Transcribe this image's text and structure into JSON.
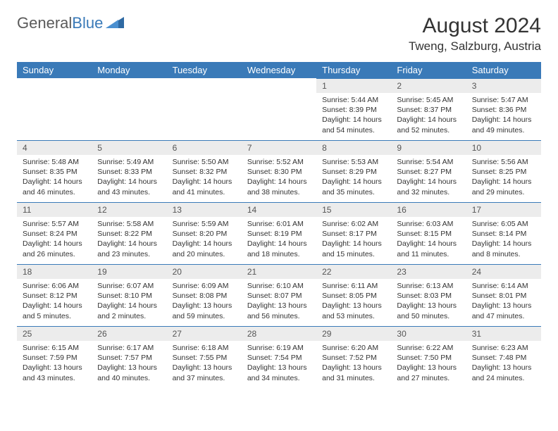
{
  "logo": {
    "word1": "General",
    "word2": "Blue"
  },
  "title": "August 2024",
  "location": "Tweng, Salzburg, Austria",
  "colors": {
    "header_bg": "#3a7ab8",
    "header_text": "#ffffff",
    "daynum_bg": "#ececec",
    "border": "#3a7ab8",
    "body_text": "#333333"
  },
  "daysOfWeek": [
    "Sunday",
    "Monday",
    "Tuesday",
    "Wednesday",
    "Thursday",
    "Friday",
    "Saturday"
  ],
  "weeks": [
    [
      {
        "n": "",
        "sr": "",
        "ss": "",
        "dl": ""
      },
      {
        "n": "",
        "sr": "",
        "ss": "",
        "dl": ""
      },
      {
        "n": "",
        "sr": "",
        "ss": "",
        "dl": ""
      },
      {
        "n": "",
        "sr": "",
        "ss": "",
        "dl": ""
      },
      {
        "n": "1",
        "sr": "Sunrise: 5:44 AM",
        "ss": "Sunset: 8:39 PM",
        "dl": "Daylight: 14 hours and 54 minutes."
      },
      {
        "n": "2",
        "sr": "Sunrise: 5:45 AM",
        "ss": "Sunset: 8:37 PM",
        "dl": "Daylight: 14 hours and 52 minutes."
      },
      {
        "n": "3",
        "sr": "Sunrise: 5:47 AM",
        "ss": "Sunset: 8:36 PM",
        "dl": "Daylight: 14 hours and 49 minutes."
      }
    ],
    [
      {
        "n": "4",
        "sr": "Sunrise: 5:48 AM",
        "ss": "Sunset: 8:35 PM",
        "dl": "Daylight: 14 hours and 46 minutes."
      },
      {
        "n": "5",
        "sr": "Sunrise: 5:49 AM",
        "ss": "Sunset: 8:33 PM",
        "dl": "Daylight: 14 hours and 43 minutes."
      },
      {
        "n": "6",
        "sr": "Sunrise: 5:50 AM",
        "ss": "Sunset: 8:32 PM",
        "dl": "Daylight: 14 hours and 41 minutes."
      },
      {
        "n": "7",
        "sr": "Sunrise: 5:52 AM",
        "ss": "Sunset: 8:30 PM",
        "dl": "Daylight: 14 hours and 38 minutes."
      },
      {
        "n": "8",
        "sr": "Sunrise: 5:53 AM",
        "ss": "Sunset: 8:29 PM",
        "dl": "Daylight: 14 hours and 35 minutes."
      },
      {
        "n": "9",
        "sr": "Sunrise: 5:54 AM",
        "ss": "Sunset: 8:27 PM",
        "dl": "Daylight: 14 hours and 32 minutes."
      },
      {
        "n": "10",
        "sr": "Sunrise: 5:56 AM",
        "ss": "Sunset: 8:25 PM",
        "dl": "Daylight: 14 hours and 29 minutes."
      }
    ],
    [
      {
        "n": "11",
        "sr": "Sunrise: 5:57 AM",
        "ss": "Sunset: 8:24 PM",
        "dl": "Daylight: 14 hours and 26 minutes."
      },
      {
        "n": "12",
        "sr": "Sunrise: 5:58 AM",
        "ss": "Sunset: 8:22 PM",
        "dl": "Daylight: 14 hours and 23 minutes."
      },
      {
        "n": "13",
        "sr": "Sunrise: 5:59 AM",
        "ss": "Sunset: 8:20 PM",
        "dl": "Daylight: 14 hours and 20 minutes."
      },
      {
        "n": "14",
        "sr": "Sunrise: 6:01 AM",
        "ss": "Sunset: 8:19 PM",
        "dl": "Daylight: 14 hours and 18 minutes."
      },
      {
        "n": "15",
        "sr": "Sunrise: 6:02 AM",
        "ss": "Sunset: 8:17 PM",
        "dl": "Daylight: 14 hours and 15 minutes."
      },
      {
        "n": "16",
        "sr": "Sunrise: 6:03 AM",
        "ss": "Sunset: 8:15 PM",
        "dl": "Daylight: 14 hours and 11 minutes."
      },
      {
        "n": "17",
        "sr": "Sunrise: 6:05 AM",
        "ss": "Sunset: 8:14 PM",
        "dl": "Daylight: 14 hours and 8 minutes."
      }
    ],
    [
      {
        "n": "18",
        "sr": "Sunrise: 6:06 AM",
        "ss": "Sunset: 8:12 PM",
        "dl": "Daylight: 14 hours and 5 minutes."
      },
      {
        "n": "19",
        "sr": "Sunrise: 6:07 AM",
        "ss": "Sunset: 8:10 PM",
        "dl": "Daylight: 14 hours and 2 minutes."
      },
      {
        "n": "20",
        "sr": "Sunrise: 6:09 AM",
        "ss": "Sunset: 8:08 PM",
        "dl": "Daylight: 13 hours and 59 minutes."
      },
      {
        "n": "21",
        "sr": "Sunrise: 6:10 AM",
        "ss": "Sunset: 8:07 PM",
        "dl": "Daylight: 13 hours and 56 minutes."
      },
      {
        "n": "22",
        "sr": "Sunrise: 6:11 AM",
        "ss": "Sunset: 8:05 PM",
        "dl": "Daylight: 13 hours and 53 minutes."
      },
      {
        "n": "23",
        "sr": "Sunrise: 6:13 AM",
        "ss": "Sunset: 8:03 PM",
        "dl": "Daylight: 13 hours and 50 minutes."
      },
      {
        "n": "24",
        "sr": "Sunrise: 6:14 AM",
        "ss": "Sunset: 8:01 PM",
        "dl": "Daylight: 13 hours and 47 minutes."
      }
    ],
    [
      {
        "n": "25",
        "sr": "Sunrise: 6:15 AM",
        "ss": "Sunset: 7:59 PM",
        "dl": "Daylight: 13 hours and 43 minutes."
      },
      {
        "n": "26",
        "sr": "Sunrise: 6:17 AM",
        "ss": "Sunset: 7:57 PM",
        "dl": "Daylight: 13 hours and 40 minutes."
      },
      {
        "n": "27",
        "sr": "Sunrise: 6:18 AM",
        "ss": "Sunset: 7:55 PM",
        "dl": "Daylight: 13 hours and 37 minutes."
      },
      {
        "n": "28",
        "sr": "Sunrise: 6:19 AM",
        "ss": "Sunset: 7:54 PM",
        "dl": "Daylight: 13 hours and 34 minutes."
      },
      {
        "n": "29",
        "sr": "Sunrise: 6:20 AM",
        "ss": "Sunset: 7:52 PM",
        "dl": "Daylight: 13 hours and 31 minutes."
      },
      {
        "n": "30",
        "sr": "Sunrise: 6:22 AM",
        "ss": "Sunset: 7:50 PM",
        "dl": "Daylight: 13 hours and 27 minutes."
      },
      {
        "n": "31",
        "sr": "Sunrise: 6:23 AM",
        "ss": "Sunset: 7:48 PM",
        "dl": "Daylight: 13 hours and 24 minutes."
      }
    ]
  ]
}
